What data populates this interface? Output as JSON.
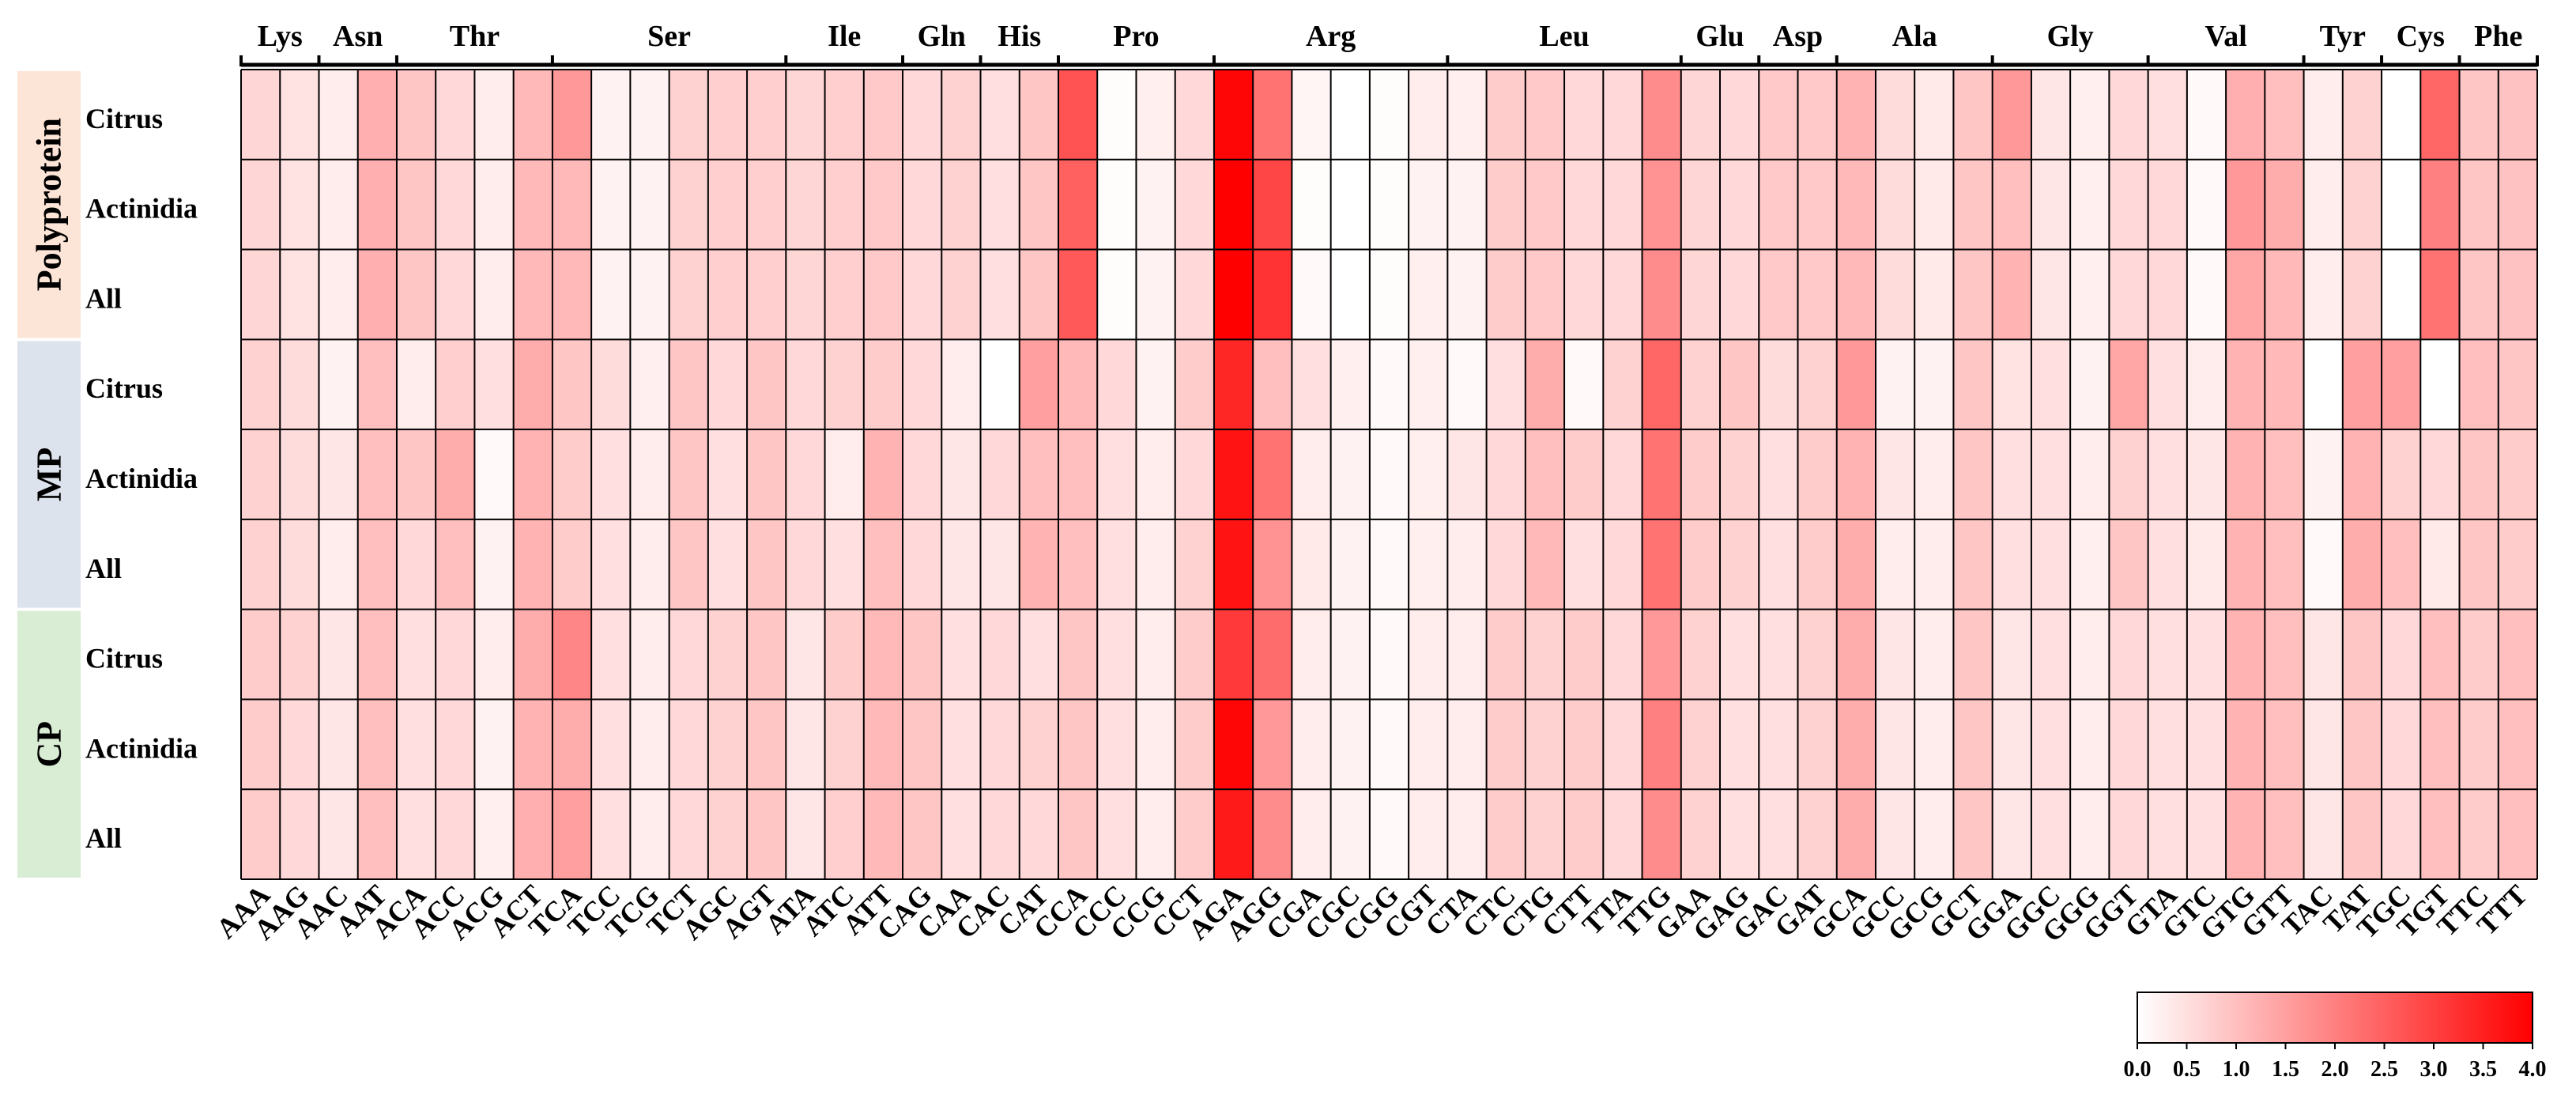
{
  "chart_data": {
    "type": "heatmap",
    "title": "",
    "codons": [
      "AAA",
      "AAG",
      "AAC",
      "AAT",
      "ACA",
      "ACC",
      "ACG",
      "ACT",
      "TCA",
      "TCC",
      "TCG",
      "TCT",
      "AGC",
      "AGT",
      "ATA",
      "ATC",
      "ATT",
      "CAG",
      "CAA",
      "CAC",
      "CAT",
      "CCA",
      "CCC",
      "CCG",
      "CCT",
      "AGA",
      "AGG",
      "CGA",
      "CGC",
      "CGG",
      "CGT",
      "CTA",
      "CTC",
      "CTG",
      "CTT",
      "TTA",
      "TTG",
      "GAA",
      "GAG",
      "GAC",
      "GAT",
      "GCA",
      "GCC",
      "GCG",
      "GCT",
      "GGA",
      "GGC",
      "GGG",
      "GGT",
      "GTA",
      "GTC",
      "GTG",
      "GTT",
      "TAC",
      "TAT",
      "TGC",
      "TGT",
      "TTC",
      "TTT"
    ],
    "amino_acid_groups": [
      {
        "label": "Lys",
        "span": 2
      },
      {
        "label": "Asn",
        "span": 2
      },
      {
        "label": "Thr",
        "span": 4
      },
      {
        "label": "Ser",
        "span": 6
      },
      {
        "label": "Ile",
        "span": 3
      },
      {
        "label": "Gln",
        "span": 2
      },
      {
        "label": "His",
        "span": 2
      },
      {
        "label": "Pro",
        "span": 4
      },
      {
        "label": "Arg",
        "span": 6
      },
      {
        "label": "Leu",
        "span": 6
      },
      {
        "label": "Glu",
        "span": 2
      },
      {
        "label": "Asp",
        "span": 2
      },
      {
        "label": "Ala",
        "span": 4
      },
      {
        "label": "Gly",
        "span": 4
      },
      {
        "label": "Val",
        "span": 4
      },
      {
        "label": "Tyr",
        "span": 2
      },
      {
        "label": "Cys",
        "span": 2
      },
      {
        "label": "Phe",
        "span": 2
      }
    ],
    "row_groups": [
      {
        "label": "Polyprotein",
        "color": "#fce4d6",
        "rows": [
          "Citrus",
          "Actinidia",
          "All"
        ]
      },
      {
        "label": "MP",
        "color": "#dde3ec",
        "rows": [
          "Citrus",
          "Actinidia",
          "All"
        ]
      },
      {
        "label": "CP",
        "color": "#d9ecd4",
        "rows": [
          "Citrus",
          "Actinidia",
          "All"
        ]
      }
    ],
    "values": [
      [
        0.65,
        0.45,
        0.3,
        1.25,
        0.9,
        0.6,
        0.3,
        1.1,
        1.6,
        0.2,
        0.2,
        0.7,
        0.75,
        0.75,
        0.65,
        0.75,
        0.85,
        0.6,
        0.7,
        0.5,
        0.9,
        2.7,
        0.05,
        0.25,
        0.6,
        3.9,
        2.2,
        0.15,
        0.0,
        0.05,
        0.3,
        0.25,
        0.8,
        0.85,
        0.6,
        0.6,
        1.8,
        0.65,
        0.6,
        0.85,
        0.85,
        1.2,
        0.55,
        0.35,
        0.9,
        1.6,
        0.4,
        0.25,
        0.6,
        0.5,
        0.1,
        1.25,
        1.0,
        0.3,
        0.7,
        0.0,
        2.4,
        0.9,
        0.95
      ],
      [
        0.65,
        0.45,
        0.3,
        1.25,
        0.9,
        0.6,
        0.3,
        1.1,
        1.1,
        0.2,
        0.2,
        0.7,
        0.75,
        0.75,
        0.65,
        0.75,
        0.85,
        0.6,
        0.7,
        0.5,
        0.9,
        2.5,
        0.05,
        0.2,
        0.6,
        4.0,
        2.9,
        0.05,
        0.0,
        0.05,
        0.2,
        0.2,
        0.8,
        0.85,
        0.6,
        0.6,
        1.7,
        0.65,
        0.6,
        0.85,
        0.85,
        1.1,
        0.55,
        0.35,
        0.9,
        1.0,
        0.4,
        0.25,
        0.6,
        0.6,
        0.1,
        1.6,
        1.3,
        0.3,
        0.7,
        0.0,
        2.0,
        0.9,
        0.95
      ],
      [
        0.65,
        0.45,
        0.3,
        1.25,
        0.9,
        0.6,
        0.3,
        1.1,
        1.1,
        0.2,
        0.2,
        0.7,
        0.75,
        0.75,
        0.65,
        0.75,
        0.85,
        0.6,
        0.7,
        0.5,
        0.9,
        2.6,
        0.05,
        0.2,
        0.6,
        4.0,
        3.2,
        0.1,
        0.0,
        0.05,
        0.25,
        0.2,
        0.8,
        0.85,
        0.6,
        0.6,
        1.8,
        0.65,
        0.6,
        0.85,
        0.85,
        1.1,
        0.55,
        0.35,
        0.9,
        1.2,
        0.4,
        0.25,
        0.6,
        0.6,
        0.1,
        1.4,
        1.1,
        0.3,
        0.7,
        0.0,
        2.2,
        0.9,
        0.95
      ],
      [
        0.7,
        0.55,
        0.2,
        1.0,
        0.3,
        0.75,
        0.5,
        1.3,
        0.9,
        0.55,
        0.25,
        0.9,
        0.6,
        0.9,
        0.6,
        0.7,
        0.8,
        0.6,
        0.3,
        0.0,
        1.5,
        1.1,
        0.6,
        0.2,
        0.8,
        3.4,
        1.0,
        0.5,
        0.25,
        0.1,
        0.25,
        0.1,
        0.5,
        1.3,
        0.1,
        0.7,
        2.4,
        0.7,
        0.9,
        0.55,
        0.7,
        1.6,
        0.2,
        0.2,
        0.9,
        0.45,
        0.5,
        0.2,
        1.4,
        0.5,
        0.3,
        1.2,
        1.1,
        0.0,
        1.5,
        1.5,
        0.0,
        1.0,
        0.9
      ],
      [
        0.7,
        0.55,
        0.4,
        1.0,
        0.9,
        1.3,
        0.1,
        1.2,
        0.8,
        0.5,
        0.3,
        0.9,
        0.5,
        0.9,
        0.6,
        0.3,
        1.2,
        0.6,
        0.4,
        0.6,
        1.0,
        1.0,
        0.5,
        0.3,
        0.6,
        3.7,
        2.2,
        0.3,
        0.2,
        0.1,
        0.25,
        0.4,
        0.6,
        1.0,
        0.8,
        0.6,
        2.2,
        0.8,
        0.7,
        0.5,
        0.8,
        1.2,
        0.4,
        0.3,
        0.9,
        0.5,
        0.5,
        0.3,
        0.7,
        0.5,
        0.4,
        1.2,
        1.0,
        0.2,
        1.2,
        0.7,
        0.6,
        0.9,
        0.8
      ],
      [
        0.7,
        0.55,
        0.3,
        1.0,
        0.6,
        1.0,
        0.2,
        1.2,
        0.8,
        0.5,
        0.3,
        0.9,
        0.5,
        0.9,
        0.6,
        0.5,
        1.0,
        0.6,
        0.4,
        0.4,
        1.2,
        1.0,
        0.5,
        0.3,
        0.7,
        3.7,
        1.7,
        0.35,
        0.2,
        0.1,
        0.25,
        0.3,
        0.6,
        1.1,
        0.5,
        0.6,
        2.2,
        0.8,
        0.7,
        0.5,
        0.8,
        1.3,
        0.3,
        0.3,
        0.9,
        0.5,
        0.5,
        0.25,
        0.9,
        0.5,
        0.35,
        1.2,
        1.0,
        0.1,
        1.3,
        1.0,
        0.35,
        0.9,
        0.8
      ],
      [
        0.8,
        0.7,
        0.4,
        1.0,
        0.5,
        0.6,
        0.3,
        1.3,
        1.9,
        0.5,
        0.3,
        0.6,
        0.7,
        0.9,
        0.4,
        0.8,
        1.1,
        0.9,
        0.5,
        0.6,
        0.5,
        0.9,
        0.5,
        0.3,
        0.8,
        3.1,
        2.3,
        0.3,
        0.2,
        0.1,
        0.3,
        0.3,
        0.8,
        0.7,
        0.8,
        0.6,
        1.6,
        0.7,
        0.5,
        0.5,
        0.7,
        1.3,
        0.4,
        0.3,
        0.9,
        0.4,
        0.5,
        0.3,
        0.6,
        0.5,
        0.5,
        1.2,
        1.0,
        0.4,
        0.9,
        0.6,
        1.0,
        0.8,
        1.0
      ],
      [
        0.8,
        0.6,
        0.4,
        1.0,
        0.5,
        0.6,
        0.2,
        1.2,
        1.3,
        0.5,
        0.3,
        0.6,
        0.7,
        0.9,
        0.4,
        0.7,
        1.1,
        0.9,
        0.5,
        0.6,
        0.7,
        0.9,
        0.5,
        0.3,
        0.8,
        3.9,
        1.6,
        0.3,
        0.2,
        0.1,
        0.3,
        0.3,
        0.8,
        0.7,
        0.8,
        0.6,
        2.0,
        0.7,
        0.5,
        0.5,
        0.7,
        1.3,
        0.4,
        0.3,
        0.9,
        0.4,
        0.5,
        0.3,
        0.6,
        0.5,
        0.5,
        1.2,
        1.0,
        0.4,
        0.9,
        0.6,
        1.0,
        0.8,
        1.0
      ],
      [
        0.8,
        0.6,
        0.4,
        1.0,
        0.5,
        0.6,
        0.25,
        1.25,
        1.5,
        0.5,
        0.3,
        0.6,
        0.7,
        0.9,
        0.4,
        0.75,
        1.1,
        0.9,
        0.5,
        0.6,
        0.6,
        0.9,
        0.5,
        0.3,
        0.8,
        3.6,
        1.8,
        0.3,
        0.2,
        0.1,
        0.3,
        0.3,
        0.8,
        0.7,
        0.8,
        0.6,
        1.8,
        0.7,
        0.5,
        0.5,
        0.7,
        1.3,
        0.4,
        0.3,
        0.9,
        0.4,
        0.5,
        0.3,
        0.6,
        0.5,
        0.5,
        1.2,
        1.0,
        0.4,
        0.9,
        0.6,
        1.0,
        0.8,
        1.0
      ]
    ],
    "color_scale": {
      "min": 0.0,
      "max": 4.0,
      "low_color": "#ffffff",
      "high_color": "#ff0000",
      "ticks": [
        "0.0",
        "0.5",
        "1.0",
        "1.5",
        "2.0",
        "2.5",
        "3.0",
        "3.5",
        "4.0"
      ]
    },
    "legend_placement": "bottom-right",
    "grid": true
  }
}
